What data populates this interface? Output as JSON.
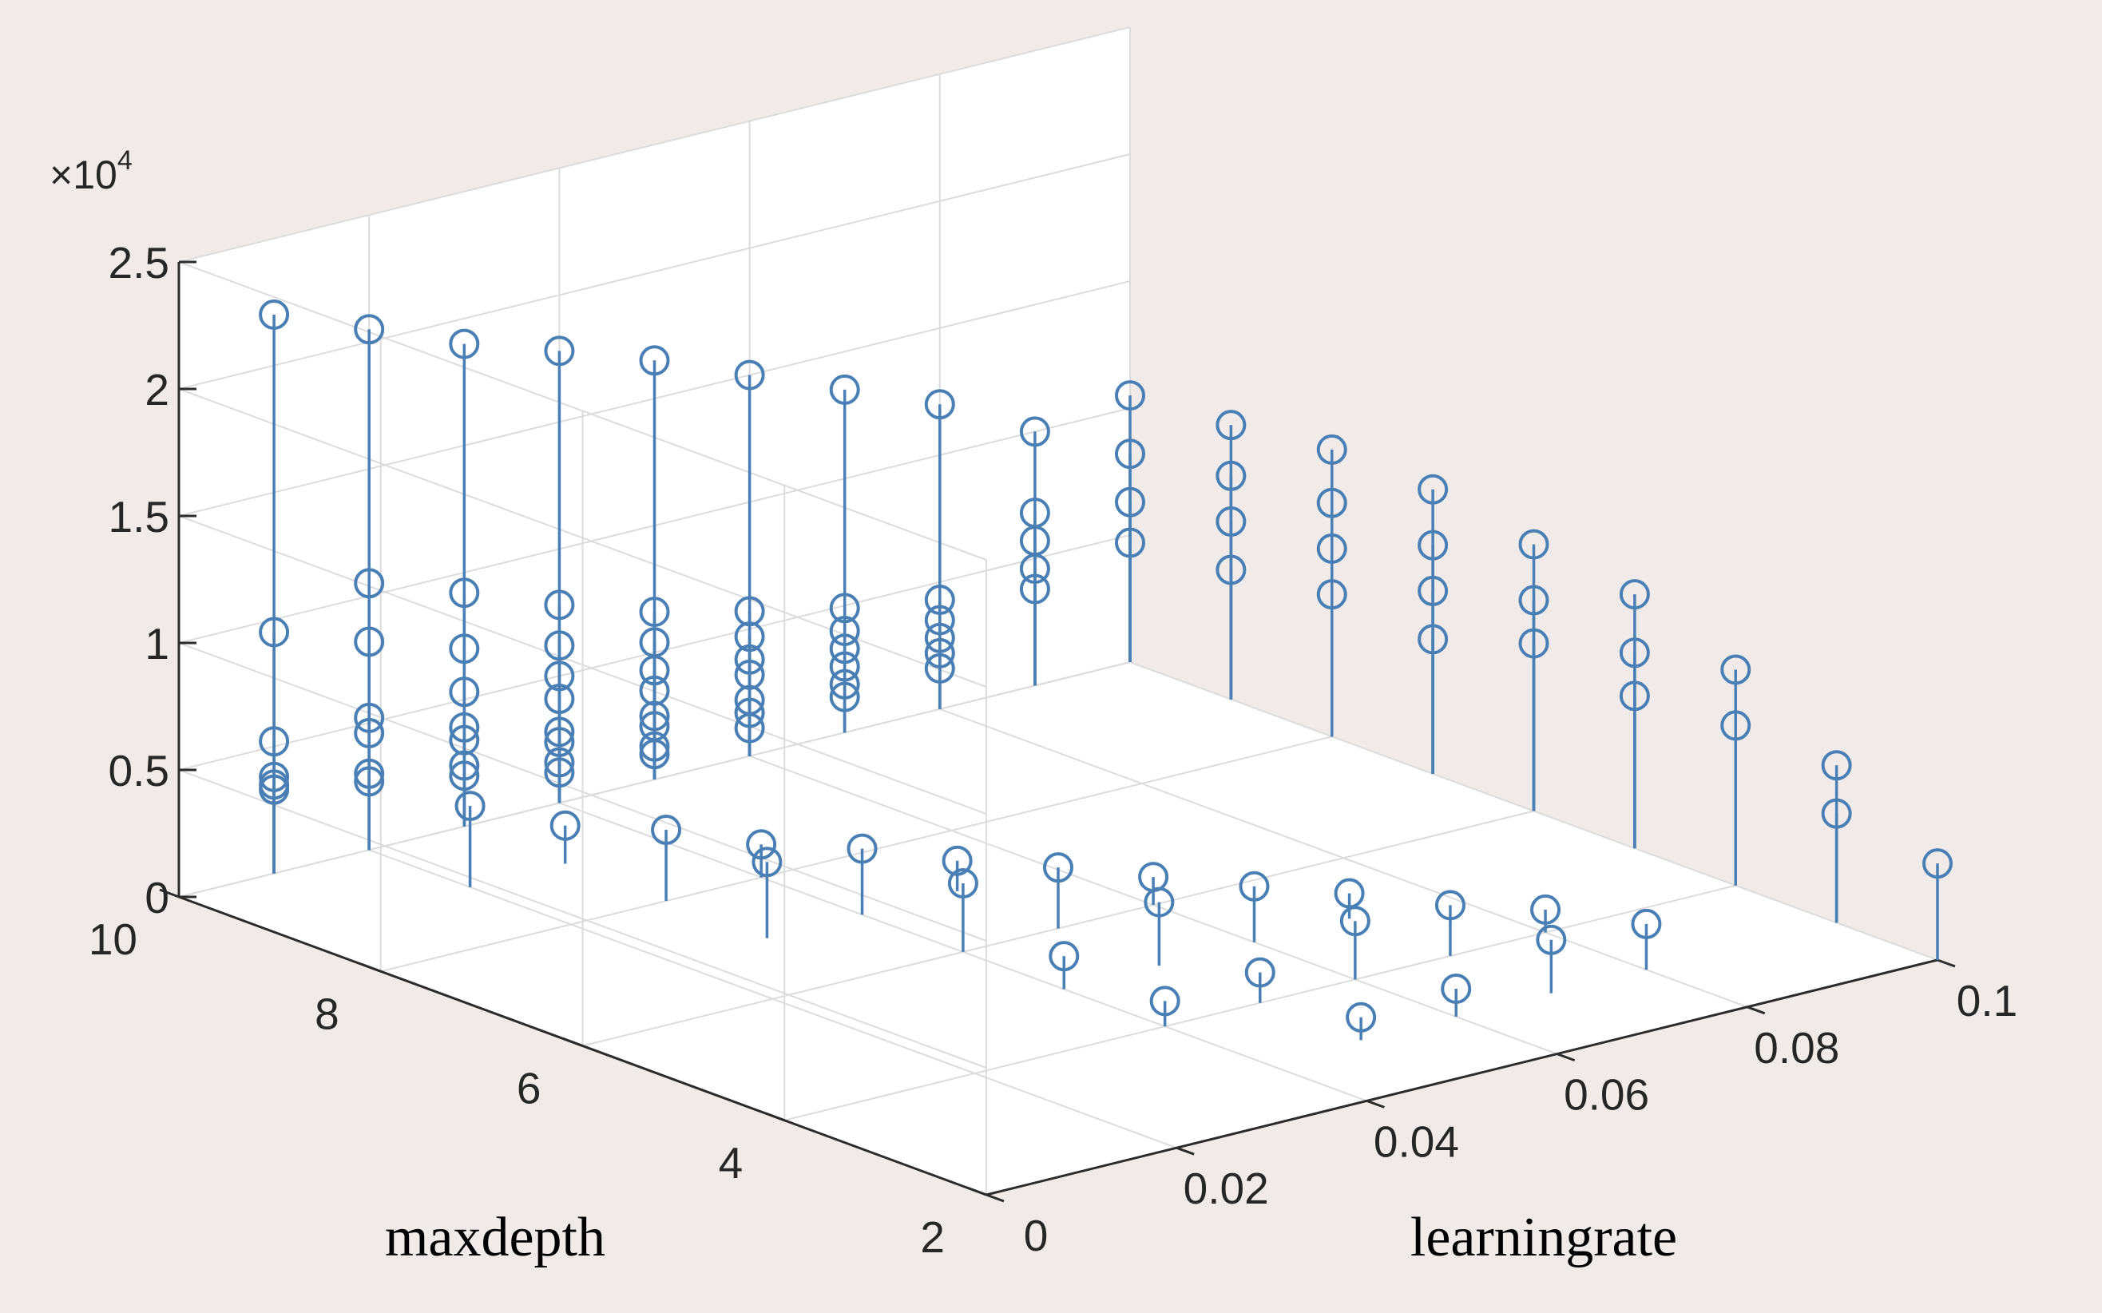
{
  "chart_data": {
    "type": "stem3",
    "xlabel": "learningrate",
    "ylabel": "maxdepth",
    "zlabel": "",
    "x_ticks": [
      "0",
      "0.02",
      "0.04",
      "0.06",
      "0.08",
      "0.1"
    ],
    "y_ticks": [
      "2",
      "4",
      "6",
      "8",
      "10"
    ],
    "z_ticks": [
      "0",
      "0.5",
      "1",
      "1.5",
      "2",
      "2.5"
    ],
    "z_exponent": "×10",
    "z_exponent_power": "4",
    "xlim": [
      0,
      0.1
    ],
    "ylim": [
      2,
      10
    ],
    "zlim": [
      0,
      25000
    ],
    "grid": true,
    "marker": "circle",
    "color": "#4a7fb5",
    "box_color": "#2b2b2b",
    "grid_color": "#dcdcdc",
    "background": "#f0ebe9",
    "grid_values": {
      "learningrate": [
        0.01,
        0.02,
        0.03,
        0.04,
        0.05,
        0.06,
        0.07,
        0.08,
        0.09,
        0.1
      ],
      "maxdepth": [
        3,
        4,
        5,
        6,
        7,
        8,
        9,
        10
      ]
    },
    "points": [
      {
        "x": 0.01,
        "y": 10,
        "z": 22000
      },
      {
        "x": 0.01,
        "y": 10,
        "z": 9500
      },
      {
        "x": 0.01,
        "y": 10,
        "z": 5200
      },
      {
        "x": 0.01,
        "y": 10,
        "z": 3800
      },
      {
        "x": 0.01,
        "y": 10,
        "z": 3500
      },
      {
        "x": 0.01,
        "y": 10,
        "z": 3300
      },
      {
        "x": 0.02,
        "y": 10,
        "z": 20500
      },
      {
        "x": 0.02,
        "y": 10,
        "z": 10500
      },
      {
        "x": 0.02,
        "y": 10,
        "z": 8200
      },
      {
        "x": 0.02,
        "y": 10,
        "z": 5200
      },
      {
        "x": 0.02,
        "y": 10,
        "z": 4600
      },
      {
        "x": 0.02,
        "y": 10,
        "z": 3000
      },
      {
        "x": 0.02,
        "y": 10,
        "z": 2700
      },
      {
        "x": 0.03,
        "y": 10,
        "z": 19000
      },
      {
        "x": 0.03,
        "y": 10,
        "z": 9200
      },
      {
        "x": 0.03,
        "y": 10,
        "z": 7000
      },
      {
        "x": 0.03,
        "y": 10,
        "z": 5300
      },
      {
        "x": 0.03,
        "y": 10,
        "z": 3900
      },
      {
        "x": 0.03,
        "y": 10,
        "z": 3400
      },
      {
        "x": 0.03,
        "y": 10,
        "z": 2400
      },
      {
        "x": 0.03,
        "y": 10,
        "z": 2000
      },
      {
        "x": 0.04,
        "y": 10,
        "z": 17800
      },
      {
        "x": 0.04,
        "y": 10,
        "z": 7800
      },
      {
        "x": 0.04,
        "y": 10,
        "z": 6200
      },
      {
        "x": 0.04,
        "y": 10,
        "z": 5000
      },
      {
        "x": 0.04,
        "y": 10,
        "z": 4100
      },
      {
        "x": 0.04,
        "y": 10,
        "z": 2800
      },
      {
        "x": 0.04,
        "y": 10,
        "z": 2400
      },
      {
        "x": 0.04,
        "y": 10,
        "z": 1600
      },
      {
        "x": 0.04,
        "y": 10,
        "z": 1200
      },
      {
        "x": 0.05,
        "y": 10,
        "z": 16500
      },
      {
        "x": 0.05,
        "y": 10,
        "z": 6600
      },
      {
        "x": 0.05,
        "y": 10,
        "z": 5400
      },
      {
        "x": 0.05,
        "y": 10,
        "z": 4300
      },
      {
        "x": 0.05,
        "y": 10,
        "z": 3500
      },
      {
        "x": 0.05,
        "y": 10,
        "z": 2500
      },
      {
        "x": 0.05,
        "y": 10,
        "z": 2100
      },
      {
        "x": 0.05,
        "y": 10,
        "z": 1300
      },
      {
        "x": 0.05,
        "y": 10,
        "z": 1000
      },
      {
        "x": 0.06,
        "y": 10,
        "z": 15000
      },
      {
        "x": 0.06,
        "y": 10,
        "z": 5700
      },
      {
        "x": 0.06,
        "y": 10,
        "z": 4700
      },
      {
        "x": 0.06,
        "y": 10,
        "z": 3800
      },
      {
        "x": 0.06,
        "y": 10,
        "z": 3200
      },
      {
        "x": 0.06,
        "y": 10,
        "z": 2200
      },
      {
        "x": 0.06,
        "y": 10,
        "z": 1700
      },
      {
        "x": 0.06,
        "y": 10,
        "z": 1100
      },
      {
        "x": 0.07,
        "y": 10,
        "z": 13500
      },
      {
        "x": 0.07,
        "y": 10,
        "z": 4900
      },
      {
        "x": 0.07,
        "y": 10,
        "z": 4000
      },
      {
        "x": 0.07,
        "y": 10,
        "z": 3300
      },
      {
        "x": 0.07,
        "y": 10,
        "z": 2600
      },
      {
        "x": 0.07,
        "y": 10,
        "z": 1900
      },
      {
        "x": 0.07,
        "y": 10,
        "z": 1400
      },
      {
        "x": 0.08,
        "y": 10,
        "z": 12000
      },
      {
        "x": 0.08,
        "y": 10,
        "z": 4300
      },
      {
        "x": 0.08,
        "y": 10,
        "z": 3500
      },
      {
        "x": 0.08,
        "y": 10,
        "z": 2800
      },
      {
        "x": 0.08,
        "y": 10,
        "z": 2200
      },
      {
        "x": 0.08,
        "y": 10,
        "z": 1600
      },
      {
        "x": 0.09,
        "y": 10,
        "z": 10000
      },
      {
        "x": 0.09,
        "y": 10,
        "z": 6800
      },
      {
        "x": 0.09,
        "y": 10,
        "z": 5700
      },
      {
        "x": 0.09,
        "y": 10,
        "z": 4600
      },
      {
        "x": 0.09,
        "y": 10,
        "z": 3800
      },
      {
        "x": 0.1,
        "y": 10,
        "z": 10500
      },
      {
        "x": 0.1,
        "y": 10,
        "z": 8200
      },
      {
        "x": 0.1,
        "y": 10,
        "z": 6300
      },
      {
        "x": 0.1,
        "y": 10,
        "z": 4700
      },
      {
        "x": 0.1,
        "y": 9,
        "z": 10800
      },
      {
        "x": 0.1,
        "y": 9,
        "z": 8800
      },
      {
        "x": 0.1,
        "y": 9,
        "z": 7000
      },
      {
        "x": 0.1,
        "y": 9,
        "z": 5100
      },
      {
        "x": 0.1,
        "y": 8,
        "z": 11300
      },
      {
        "x": 0.1,
        "y": 8,
        "z": 9200
      },
      {
        "x": 0.1,
        "y": 8,
        "z": 7400
      },
      {
        "x": 0.1,
        "y": 8,
        "z": 5600
      },
      {
        "x": 0.1,
        "y": 7,
        "z": 11200
      },
      {
        "x": 0.1,
        "y": 7,
        "z": 9000
      },
      {
        "x": 0.1,
        "y": 7,
        "z": 7200
      },
      {
        "x": 0.1,
        "y": 7,
        "z": 5300
      },
      {
        "x": 0.1,
        "y": 6,
        "z": 10500
      },
      {
        "x": 0.1,
        "y": 6,
        "z": 8300
      },
      {
        "x": 0.1,
        "y": 6,
        "z": 6600
      },
      {
        "x": 0.1,
        "y": 5,
        "z": 10000
      },
      {
        "x": 0.1,
        "y": 5,
        "z": 7700
      },
      {
        "x": 0.1,
        "y": 5,
        "z": 6000
      },
      {
        "x": 0.1,
        "y": 4,
        "z": 8500
      },
      {
        "x": 0.1,
        "y": 4,
        "z": 6300
      },
      {
        "x": 0.1,
        "y": 3,
        "z": 6200
      },
      {
        "x": 0.1,
        "y": 3,
        "z": 4300
      },
      {
        "x": 0.1,
        "y": 2,
        "z": 3800
      },
      {
        "x": 0.02,
        "y": 9,
        "z": 3200
      },
      {
        "x": 0.03,
        "y": 8,
        "z": 2800
      },
      {
        "x": 0.04,
        "y": 7,
        "z": 2600
      },
      {
        "x": 0.05,
        "y": 6,
        "z": 2400
      },
      {
        "x": 0.06,
        "y": 5,
        "z": 2200
      },
      {
        "x": 0.07,
        "y": 4,
        "z": 2000
      },
      {
        "x": 0.08,
        "y": 3,
        "z": 1800
      },
      {
        "x": 0.03,
        "y": 9,
        "z": 1500
      },
      {
        "x": 0.04,
        "y": 8,
        "z": 1300
      },
      {
        "x": 0.05,
        "y": 7,
        "z": 1200
      },
      {
        "x": 0.06,
        "y": 6,
        "z": 1100
      },
      {
        "x": 0.07,
        "y": 5,
        "z": 1000
      },
      {
        "x": 0.08,
        "y": 4,
        "z": 900
      },
      {
        "x": 0.03,
        "y": 7,
        "z": 3000
      },
      {
        "x": 0.04,
        "y": 6,
        "z": 2700
      },
      {
        "x": 0.05,
        "y": 5,
        "z": 2500
      },
      {
        "x": 0.06,
        "y": 4,
        "z": 2300
      },
      {
        "x": 0.07,
        "y": 3,
        "z": 2100
      },
      {
        "x": 0.04,
        "y": 5,
        "z": 1300
      },
      {
        "x": 0.05,
        "y": 4,
        "z": 1200
      },
      {
        "x": 0.06,
        "y": 3,
        "z": 1100
      },
      {
        "x": 0.05,
        "y": 3,
        "z": 900
      },
      {
        "x": 0.04,
        "y": 4,
        "z": 1000
      }
    ]
  }
}
